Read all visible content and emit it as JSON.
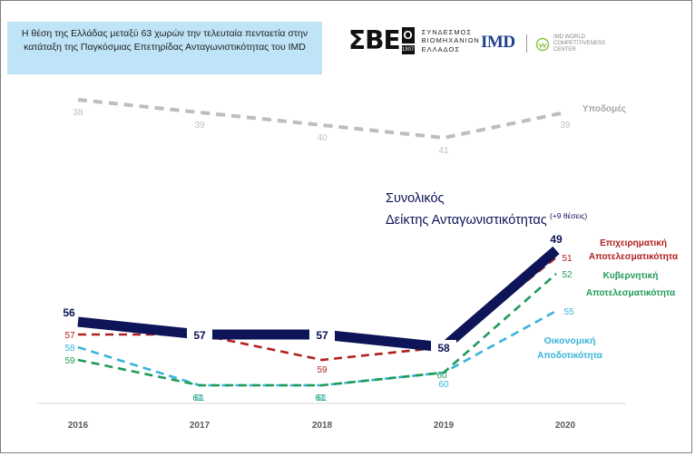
{
  "header": {
    "title": "Η θέση της Ελλάδας μεταξύ 63 χωρών την τελευταία πενταετία στην κατάταξη της Παγκόσμιας Επετηρίδας Ανταγωνιστικότητας του IMD"
  },
  "logos": {
    "sev_mark": "ΣΒΕ",
    "sev_box_top": "Ο",
    "sev_box_bottom": "1907",
    "sev_text": [
      "ΣΥΝΔΕΣΜΟΣ",
      "ΒΙΟΜΗΧΑΝΙΩΝ",
      "ΕΛΛΑΔΟΣ"
    ],
    "imd": "IMD",
    "wcc_text": [
      "IMD WORLD",
      "COMPETITIVENESS",
      "CENTER"
    ]
  },
  "colors": {
    "overall": "#0d1457",
    "business": "#b02020",
    "government": "#1e9a5a",
    "economic": "#36b4dc",
    "infrastructure": "#bdbdbd"
  },
  "chart_data": {
    "type": "line",
    "x": [
      "2016",
      "2017",
      "2018",
      "2019",
      "2020"
    ],
    "y_inverted": true,
    "ylim": [
      61,
      38
    ],
    "grid": false,
    "series": [
      {
        "name": "Υποδομές",
        "key": "infrastructure",
        "values": [
          38,
          39,
          40,
          41,
          39
        ]
      },
      {
        "name": "Συνολικός Δείκτης Ανταγωνιστικότητας",
        "key": "overall",
        "values": [
          56,
          57,
          57,
          58,
          49
        ],
        "note": "(+9 θέσεις)"
      },
      {
        "name": "Επιχειρηματική Αποτελεσματικότητα",
        "key": "business",
        "values": [
          57,
          57,
          59,
          58,
          51
        ]
      },
      {
        "name": "Κυβερνητική Αποτελεσματικότητα",
        "key": "government",
        "values": [
          59,
          61,
          61,
          60,
          52
        ]
      },
      {
        "name": "Οικονομική Αποδοτικότητα",
        "key": "economic",
        "values": [
          58,
          61,
          61,
          60,
          55
        ]
      }
    ]
  }
}
